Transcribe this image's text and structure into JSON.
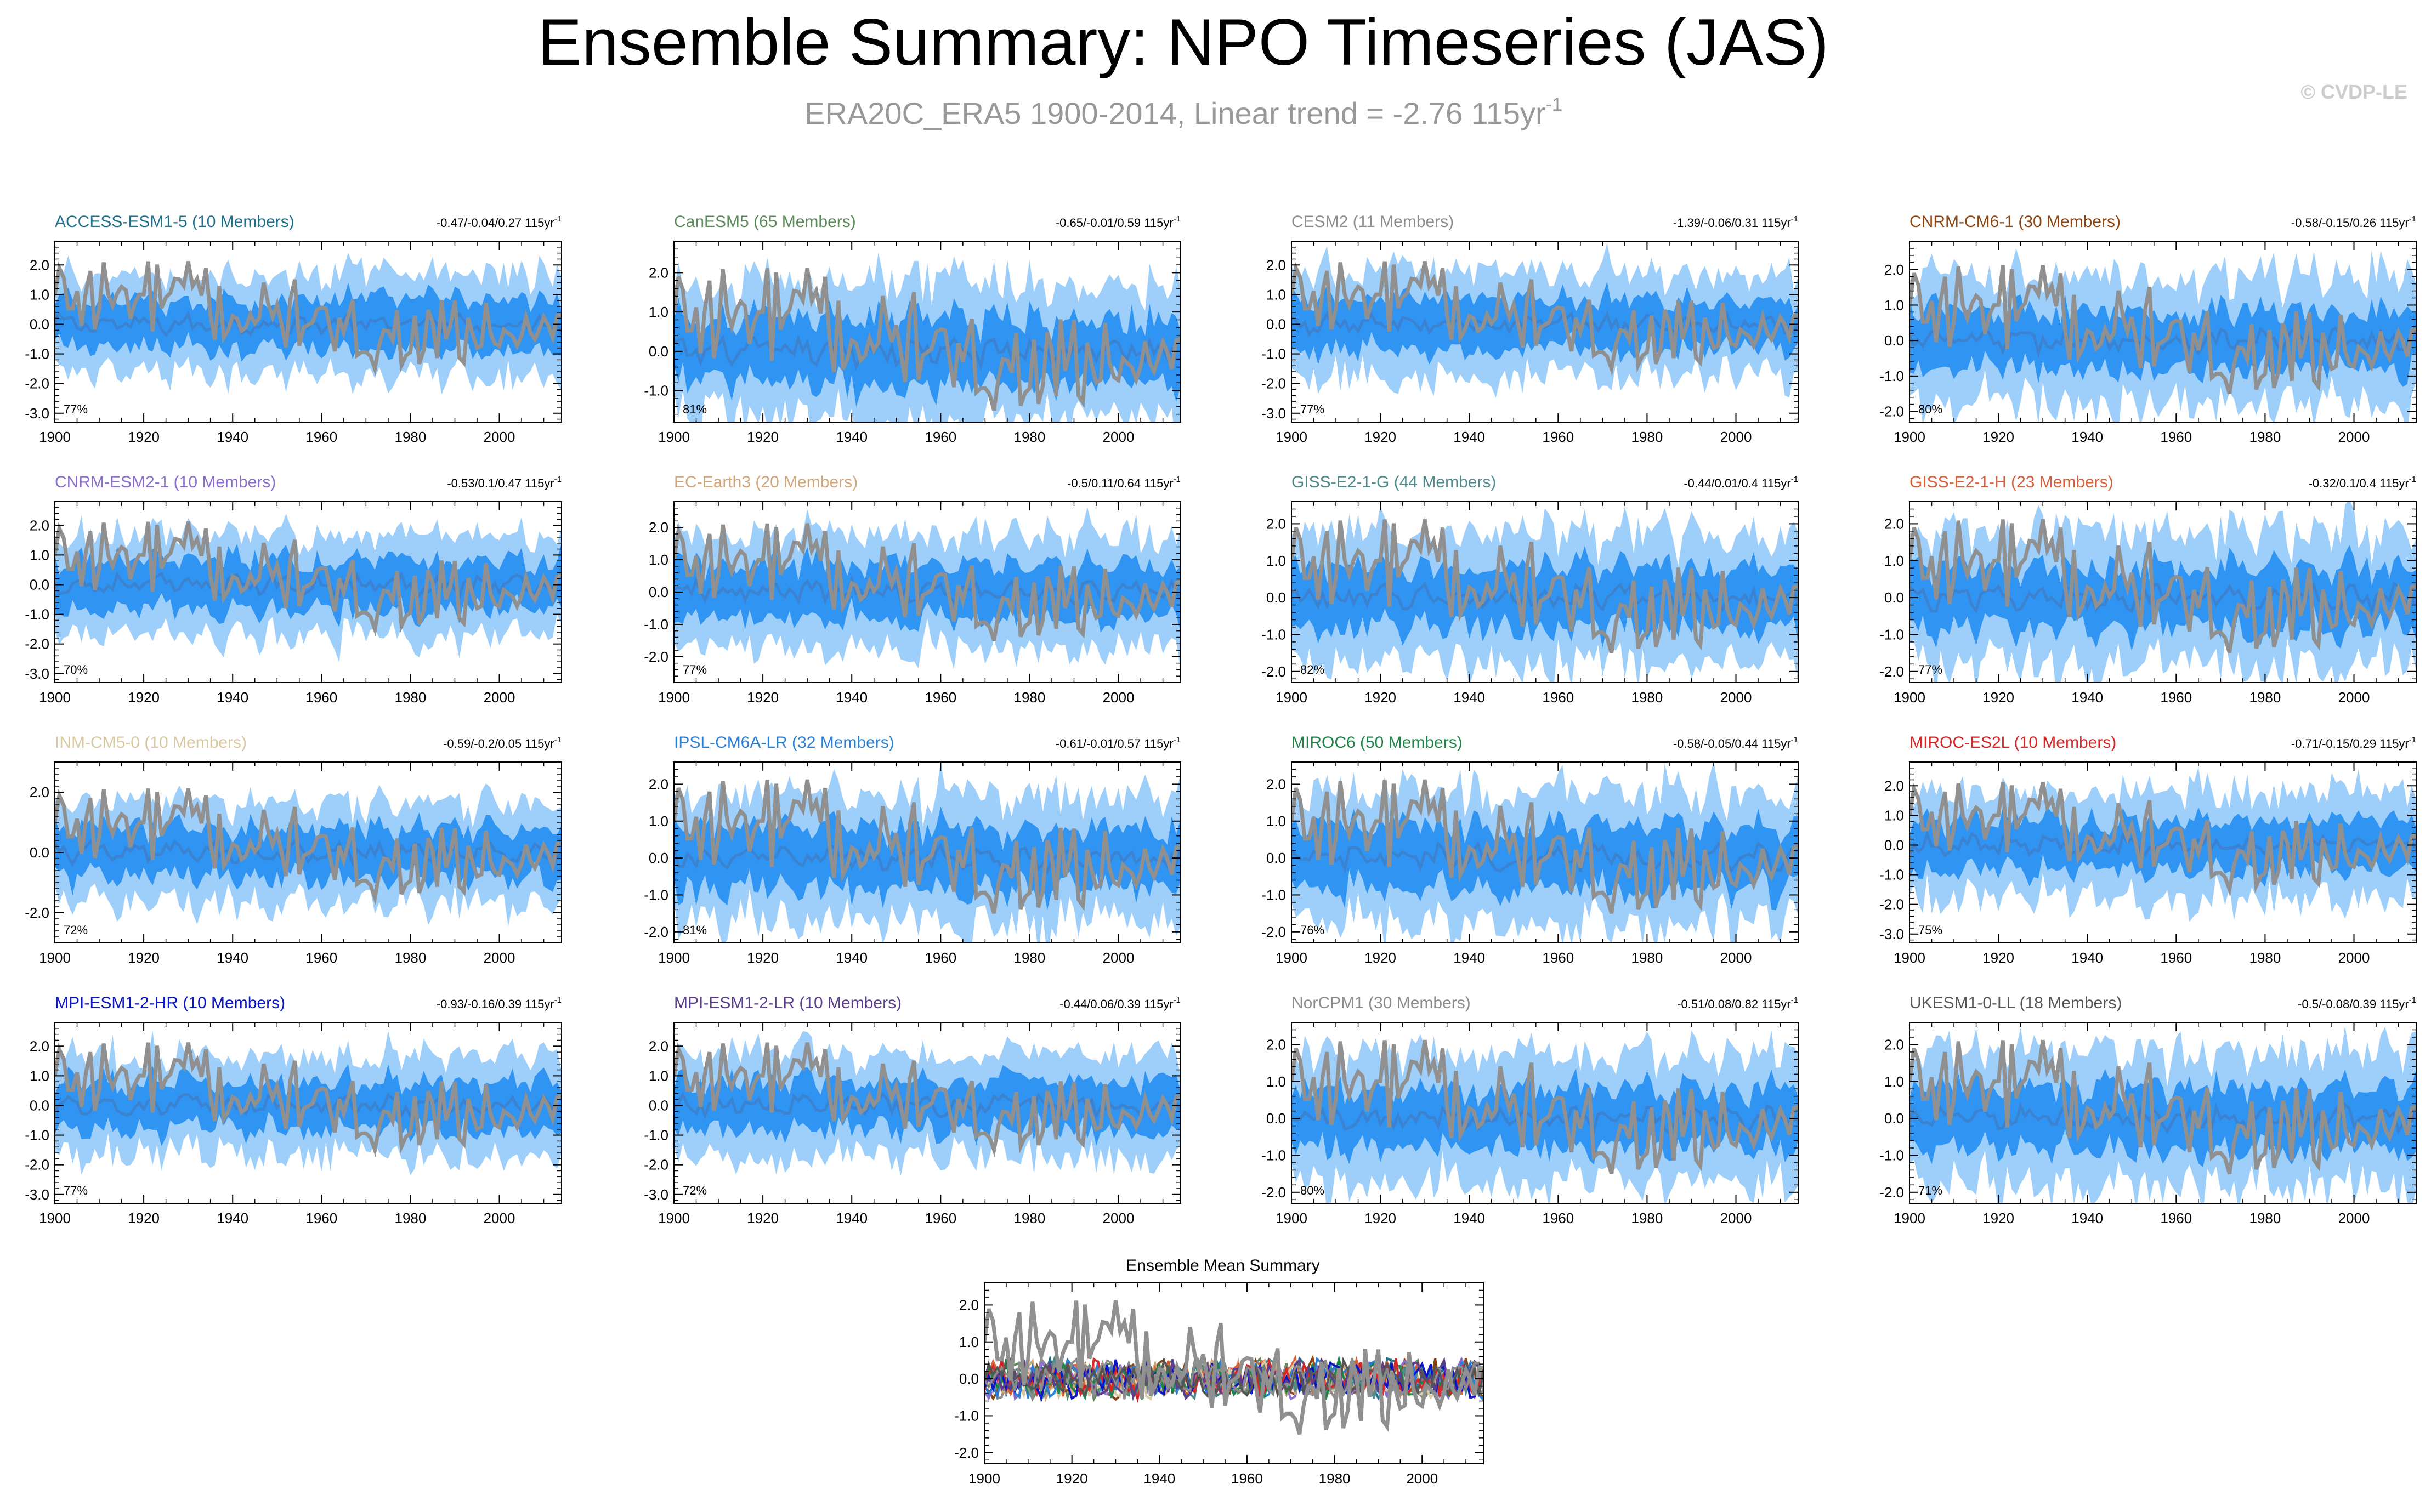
{
  "header": {
    "title": "Ensemble Summary: NPO Timeseries (JAS)",
    "subtitle_main": "ERA20C_ERA5 1900-2014, Linear trend = -2.76 115yr",
    "subtitle_sup": "-1",
    "copyright": "© CVDP-LE"
  },
  "chart_data": [
    {
      "type": "area",
      "title": "ACCESS-ESM1-5 (10 Members)",
      "title_color": "#1f6f8b",
      "trend": "-0.47/-0.04/0.27 115yr",
      "trend_sup": "-1",
      "pct": "77%",
      "ylim": [
        -3.3,
        2.8
      ],
      "yticks": [
        "2.0",
        "1.0",
        "0.0",
        "-1.0",
        "-2.0",
        "-3.0"
      ],
      "xlim": [
        1900,
        2014
      ],
      "xticks": [
        "1900",
        "1920",
        "1940",
        "1960",
        "1980",
        "2000"
      ],
      "bands": {
        "outer_color": "#9ecffa",
        "inner_color": "#2f94f2",
        "mean_color": "#3b82d1"
      },
      "observation_color": "#909090"
    },
    {
      "type": "area",
      "title": "CanESM5 (65 Members)",
      "title_color": "#5a8a5a",
      "trend": "-0.65/-0.01/0.59 115yr",
      "trend_sup": "-1",
      "pct": "81%",
      "ylim": [
        -1.8,
        2.8
      ],
      "yticks": [
        "2.0",
        "1.0",
        "0.0",
        "-1.0"
      ],
      "xlim": [
        1900,
        2014
      ],
      "xticks": [
        "1900",
        "1920",
        "1940",
        "1960",
        "1980",
        "2000"
      ],
      "bands": {
        "outer_color": "#9ecffa",
        "inner_color": "#2f94f2",
        "mean_color": "#3b82d1"
      },
      "observation_color": "#909090"
    },
    {
      "type": "area",
      "title": "CESM2 (11 Members)",
      "title_color": "#8c8c8c",
      "trend": "-1.39/-0.06/0.31 115yr",
      "trend_sup": "-1",
      "pct": "77%",
      "ylim": [
        -3.3,
        2.8
      ],
      "yticks": [
        "2.0",
        "1.0",
        "0.0",
        "-1.0",
        "-2.0",
        "-3.0"
      ],
      "xlim": [
        1900,
        2014
      ],
      "xticks": [
        "1900",
        "1920",
        "1940",
        "1960",
        "1980",
        "2000"
      ],
      "bands": {
        "outer_color": "#9ecffa",
        "inner_color": "#2f94f2",
        "mean_color": "#3b82d1"
      },
      "observation_color": "#909090"
    },
    {
      "type": "area",
      "title": "CNRM-CM6-1 (30 Members)",
      "title_color": "#8b4513",
      "trend": "-0.58/-0.15/0.26 115yr",
      "trend_sup": "-1",
      "pct": "80%",
      "ylim": [
        -2.3,
        2.8
      ],
      "yticks": [
        "2.0",
        "1.0",
        "0.0",
        "-1.0",
        "-2.0"
      ],
      "xlim": [
        1900,
        2014
      ],
      "xticks": [
        "1900",
        "1920",
        "1940",
        "1960",
        "1980",
        "2000"
      ],
      "bands": {
        "outer_color": "#9ecffa",
        "inner_color": "#2f94f2",
        "mean_color": "#3b82d1"
      },
      "observation_color": "#909090"
    },
    {
      "type": "area",
      "title": "CNRM-ESM2-1 (10 Members)",
      "title_color": "#8a6fd1",
      "trend": "-0.53/0.1/0.47 115yr",
      "trend_sup": "-1",
      "pct": "70%",
      "ylim": [
        -3.3,
        2.8
      ],
      "yticks": [
        "2.0",
        "1.0",
        "0.0",
        "-1.0",
        "-2.0",
        "-3.0"
      ],
      "xlim": [
        1900,
        2014
      ],
      "xticks": [
        "1900",
        "1920",
        "1940",
        "1960",
        "1980",
        "2000"
      ],
      "bands": {
        "outer_color": "#9ecffa",
        "inner_color": "#2f94f2",
        "mean_color": "#3b82d1"
      },
      "observation_color": "#909090"
    },
    {
      "type": "area",
      "title": "EC-Earth3 (20 Members)",
      "title_color": "#d2a679",
      "trend": "-0.5/0.11/0.64 115yr",
      "trend_sup": "-1",
      "pct": "77%",
      "ylim": [
        -2.8,
        2.8
      ],
      "yticks": [
        "2.0",
        "1.0",
        "0.0",
        "-1.0",
        "-2.0"
      ],
      "xlim": [
        1900,
        2014
      ],
      "xticks": [
        "1900",
        "1920",
        "1940",
        "1960",
        "1980",
        "2000"
      ],
      "bands": {
        "outer_color": "#9ecffa",
        "inner_color": "#2f94f2",
        "mean_color": "#3b82d1"
      },
      "observation_color": "#909090"
    },
    {
      "type": "area",
      "title": "GISS-E2-1-G (44 Members)",
      "title_color": "#4f8a8b",
      "trend": "-0.44/0.01/0.4 115yr",
      "trend_sup": "-1",
      "pct": "82%",
      "ylim": [
        -2.3,
        2.6
      ],
      "yticks": [
        "2.0",
        "1.0",
        "0.0",
        "-1.0",
        "-2.0"
      ],
      "xlim": [
        1900,
        2014
      ],
      "xticks": [
        "1900",
        "1920",
        "1940",
        "1960",
        "1980",
        "2000"
      ],
      "bands": {
        "outer_color": "#9ecffa",
        "inner_color": "#2f94f2",
        "mean_color": "#3b82d1"
      },
      "observation_color": "#909090"
    },
    {
      "type": "area",
      "title": "GISS-E2-1-H (23 Members)",
      "title_color": "#d9603b",
      "trend": "-0.32/0.1/0.4 115yr",
      "trend_sup": "-1",
      "pct": "77%",
      "ylim": [
        -2.3,
        2.6
      ],
      "yticks": [
        "2.0",
        "1.0",
        "0.0",
        "-1.0",
        "-2.0"
      ],
      "xlim": [
        1900,
        2014
      ],
      "xticks": [
        "1900",
        "1920",
        "1940",
        "1960",
        "1980",
        "2000"
      ],
      "bands": {
        "outer_color": "#9ecffa",
        "inner_color": "#2f94f2",
        "mean_color": "#3b82d1"
      },
      "observation_color": "#909090"
    },
    {
      "type": "area",
      "title": "INM-CM5-0 (10 Members)",
      "title_color": "#d8c9a3",
      "trend": "-0.59/-0.2/0.05 115yr",
      "trend_sup": "-1",
      "pct": "72%",
      "ylim": [
        -3.0,
        3.0
      ],
      "yticks": [
        "2.0",
        "0.0",
        "-2.0"
      ],
      "xlim": [
        1900,
        2014
      ],
      "xticks": [
        "1900",
        "1920",
        "1940",
        "1960",
        "1980",
        "2000"
      ],
      "bands": {
        "outer_color": "#9ecffa",
        "inner_color": "#2f94f2",
        "mean_color": "#3b82d1"
      },
      "observation_color": "#909090"
    },
    {
      "type": "area",
      "title": "IPSL-CM6A-LR (32 Members)",
      "title_color": "#2a7fd4",
      "trend": "-0.61/-0.01/0.57 115yr",
      "trend_sup": "-1",
      "pct": "81%",
      "ylim": [
        -2.3,
        2.6
      ],
      "yticks": [
        "2.0",
        "1.0",
        "0.0",
        "-1.0",
        "-2.0"
      ],
      "xlim": [
        1900,
        2014
      ],
      "xticks": [
        "1900",
        "1920",
        "1940",
        "1960",
        "1980",
        "2000"
      ],
      "bands": {
        "outer_color": "#9ecffa",
        "inner_color": "#2f94f2",
        "mean_color": "#3b82d1"
      },
      "observation_color": "#909090"
    },
    {
      "type": "area",
      "title": "MIROC6 (50 Members)",
      "title_color": "#1e8449",
      "trend": "-0.58/-0.05/0.44 115yr",
      "trend_sup": "-1",
      "pct": "76%",
      "ylim": [
        -2.3,
        2.6
      ],
      "yticks": [
        "2.0",
        "1.0",
        "0.0",
        "-1.0",
        "-2.0"
      ],
      "xlim": [
        1900,
        2014
      ],
      "xticks": [
        "1900",
        "1920",
        "1940",
        "1960",
        "1980",
        "2000"
      ],
      "bands": {
        "outer_color": "#9ecffa",
        "inner_color": "#2f94f2",
        "mean_color": "#3b82d1"
      },
      "observation_color": "#909090"
    },
    {
      "type": "area",
      "title": "MIROC-ES2L (10 Members)",
      "title_color": "#d62728",
      "trend": "-0.71/-0.15/0.29 115yr",
      "trend_sup": "-1",
      "pct": "75%",
      "ylim": [
        -3.3,
        2.8
      ],
      "yticks": [
        "2.0",
        "1.0",
        "0.0",
        "-1.0",
        "-2.0",
        "-3.0"
      ],
      "xlim": [
        1900,
        2014
      ],
      "xticks": [
        "1900",
        "1920",
        "1940",
        "1960",
        "1980",
        "2000"
      ],
      "bands": {
        "outer_color": "#9ecffa",
        "inner_color": "#2f94f2",
        "mean_color": "#3b82d1"
      },
      "observation_color": "#909090"
    },
    {
      "type": "area",
      "title": "MPI-ESM1-2-HR (10 Members)",
      "title_color": "#0b16c7",
      "trend": "-0.93/-0.16/0.39 115yr",
      "trend_sup": "-1",
      "pct": "77%",
      "ylim": [
        -3.3,
        2.8
      ],
      "yticks": [
        "2.0",
        "1.0",
        "0.0",
        "-1.0",
        "-2.0",
        "-3.0"
      ],
      "xlim": [
        1900,
        2014
      ],
      "xticks": [
        "1900",
        "1920",
        "1940",
        "1960",
        "1980",
        "2000"
      ],
      "bands": {
        "outer_color": "#9ecffa",
        "inner_color": "#2f94f2",
        "mean_color": "#3b82d1"
      },
      "observation_color": "#909090"
    },
    {
      "type": "area",
      "title": "MPI-ESM1-2-LR (10 Members)",
      "title_color": "#5b3f8c",
      "trend": "-0.44/0.06/0.39 115yr",
      "trend_sup": "-1",
      "pct": "72%",
      "ylim": [
        -3.3,
        2.8
      ],
      "yticks": [
        "2.0",
        "1.0",
        "0.0",
        "-1.0",
        "-2.0",
        "-3.0"
      ],
      "xlim": [
        1900,
        2014
      ],
      "xticks": [
        "1900",
        "1920",
        "1940",
        "1960",
        "1980",
        "2000"
      ],
      "bands": {
        "outer_color": "#9ecffa",
        "inner_color": "#2f94f2",
        "mean_color": "#3b82d1"
      },
      "observation_color": "#909090"
    },
    {
      "type": "area",
      "title": "NorCPM1 (30 Members)",
      "title_color": "#8c8c8c",
      "trend": "-0.51/0.08/0.82 115yr",
      "trend_sup": "-1",
      "pct": "80%",
      "ylim": [
        -2.3,
        2.6
      ],
      "yticks": [
        "2.0",
        "1.0",
        "0.0",
        "-1.0",
        "-2.0"
      ],
      "xlim": [
        1900,
        2014
      ],
      "xticks": [
        "1900",
        "1920",
        "1940",
        "1960",
        "1980",
        "2000"
      ],
      "bands": {
        "outer_color": "#9ecffa",
        "inner_color": "#2f94f2",
        "mean_color": "#3b82d1"
      },
      "observation_color": "#909090"
    },
    {
      "type": "area",
      "title": "UKESM1-0-LL (18 Members)",
      "title_color": "#555555",
      "trend": "-0.5/-0.08/0.39 115yr",
      "trend_sup": "-1",
      "pct": "71%",
      "ylim": [
        -2.3,
        2.6
      ],
      "yticks": [
        "2.0",
        "1.0",
        "0.0",
        "-1.0",
        "-2.0"
      ],
      "xlim": [
        1900,
        2014
      ],
      "xticks": [
        "1900",
        "1920",
        "1940",
        "1960",
        "1980",
        "2000"
      ],
      "bands": {
        "outer_color": "#9ecffa",
        "inner_color": "#2f94f2",
        "mean_color": "#3b82d1"
      },
      "observation_color": "#909090"
    },
    {
      "type": "line",
      "title": "Ensemble Mean Summary",
      "ylim": [
        -2.3,
        2.6
      ],
      "yticks": [
        "2.0",
        "1.0",
        "0.0",
        "-1.0",
        "-2.0"
      ],
      "xlim": [
        1900,
        2014
      ],
      "xticks": [
        "1900",
        "1920",
        "1940",
        "1960",
        "1980",
        "2000"
      ],
      "observation_color": "#909090",
      "series_colors": [
        "#1f6f8b",
        "#5a8a5a",
        "#8c8c8c",
        "#8b4513",
        "#8a6fd1",
        "#d2a679",
        "#4f8a8b",
        "#d9603b",
        "#d8c9a3",
        "#2a7fd4",
        "#1e8449",
        "#d62728",
        "#0b16c7",
        "#5b3f8c",
        "#8c8c8c",
        "#555555"
      ]
    }
  ]
}
